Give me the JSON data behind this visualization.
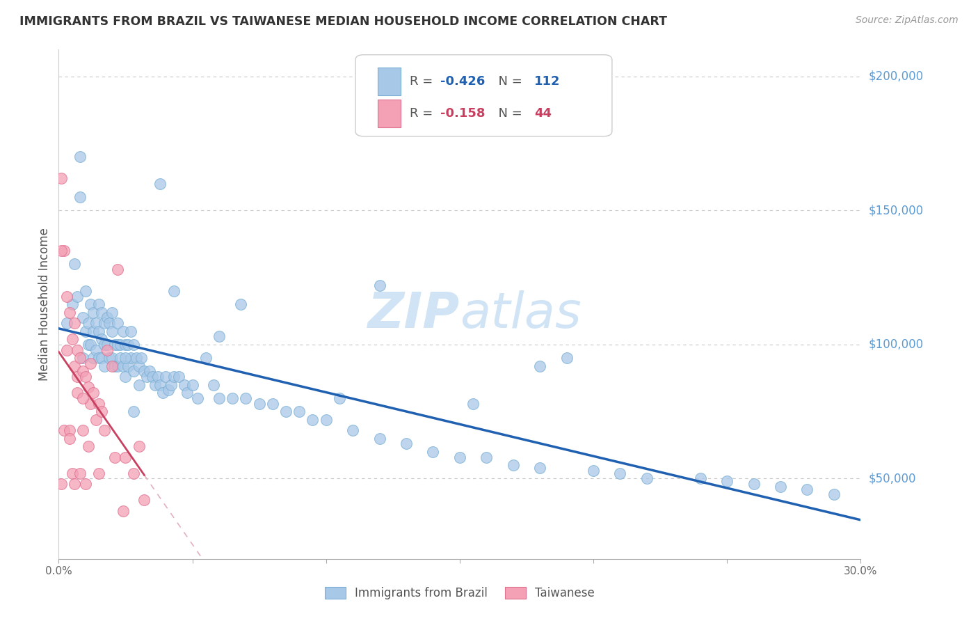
{
  "title": "IMMIGRANTS FROM BRAZIL VS TAIWANESE MEDIAN HOUSEHOLD INCOME CORRELATION CHART",
  "source": "Source: ZipAtlas.com",
  "ylabel": "Median Household Income",
  "x_min": 0.0,
  "x_max": 0.3,
  "y_min": 20000,
  "y_max": 210000,
  "y_ticks": [
    50000,
    100000,
    150000,
    200000
  ],
  "y_tick_labels": [
    "$50,000",
    "$100,000",
    "$150,000",
    "$200,000"
  ],
  "x_ticks": [
    0.0,
    0.05,
    0.1,
    0.15,
    0.2,
    0.25,
    0.3
  ],
  "x_tick_labels": [
    "0.0%",
    "",
    "",
    "",
    "",
    "",
    "30.0%"
  ],
  "brazil_color": "#a8c8e8",
  "brazil_edge": "#7aafd4",
  "taiwan_color": "#f4a0b5",
  "taiwan_edge": "#e07090",
  "brazil_R": -0.426,
  "brazil_N": 112,
  "taiwan_R": -0.158,
  "taiwan_N": 44,
  "brazil_line_color": "#2060b0",
  "taiwan_line_color": "#c84060",
  "taiwan_dash_color": "#e0b0c0",
  "background_color": "#ffffff",
  "grid_color": "#c8c8c8",
  "watermark_color": "#d0e4f5",
  "brazil_scatter_x": [
    0.003,
    0.005,
    0.006,
    0.007,
    0.008,
    0.009,
    0.009,
    0.01,
    0.01,
    0.011,
    0.011,
    0.012,
    0.012,
    0.013,
    0.013,
    0.013,
    0.014,
    0.014,
    0.015,
    0.015,
    0.015,
    0.016,
    0.016,
    0.016,
    0.017,
    0.017,
    0.017,
    0.018,
    0.018,
    0.019,
    0.019,
    0.02,
    0.02,
    0.02,
    0.021,
    0.021,
    0.022,
    0.022,
    0.022,
    0.023,
    0.023,
    0.024,
    0.024,
    0.025,
    0.025,
    0.026,
    0.026,
    0.027,
    0.027,
    0.028,
    0.028,
    0.029,
    0.03,
    0.03,
    0.031,
    0.032,
    0.033,
    0.034,
    0.035,
    0.036,
    0.037,
    0.038,
    0.039,
    0.04,
    0.041,
    0.042,
    0.043,
    0.045,
    0.047,
    0.048,
    0.05,
    0.052,
    0.055,
    0.058,
    0.06,
    0.065,
    0.07,
    0.075,
    0.08,
    0.085,
    0.09,
    0.095,
    0.1,
    0.11,
    0.12,
    0.13,
    0.14,
    0.15,
    0.16,
    0.17,
    0.18,
    0.2,
    0.21,
    0.22,
    0.24,
    0.25,
    0.26,
    0.27,
    0.28,
    0.29,
    0.008,
    0.06,
    0.12,
    0.18,
    0.038,
    0.068,
    0.043,
    0.025,
    0.19,
    0.155,
    0.105,
    0.028
  ],
  "brazil_scatter_y": [
    108000,
    115000,
    130000,
    118000,
    155000,
    110000,
    95000,
    120000,
    105000,
    108000,
    100000,
    115000,
    100000,
    112000,
    105000,
    95000,
    108000,
    98000,
    115000,
    105000,
    95000,
    112000,
    102000,
    95000,
    108000,
    100000,
    92000,
    110000,
    100000,
    108000,
    95000,
    112000,
    105000,
    95000,
    100000,
    92000,
    108000,
    100000,
    92000,
    100000,
    95000,
    105000,
    92000,
    100000,
    88000,
    100000,
    92000,
    105000,
    95000,
    100000,
    90000,
    95000,
    92000,
    85000,
    95000,
    90000,
    88000,
    90000,
    88000,
    85000,
    88000,
    85000,
    82000,
    88000,
    83000,
    85000,
    88000,
    88000,
    85000,
    82000,
    85000,
    80000,
    95000,
    85000,
    80000,
    80000,
    80000,
    78000,
    78000,
    75000,
    75000,
    72000,
    72000,
    68000,
    65000,
    63000,
    60000,
    58000,
    58000,
    55000,
    54000,
    53000,
    52000,
    50000,
    50000,
    49000,
    48000,
    47000,
    46000,
    44000,
    170000,
    103000,
    122000,
    92000,
    160000,
    115000,
    120000,
    95000,
    95000,
    78000,
    80000,
    75000
  ],
  "taiwan_scatter_x": [
    0.001,
    0.001,
    0.002,
    0.002,
    0.003,
    0.003,
    0.004,
    0.004,
    0.005,
    0.005,
    0.006,
    0.006,
    0.006,
    0.007,
    0.007,
    0.007,
    0.008,
    0.008,
    0.009,
    0.009,
    0.01,
    0.01,
    0.011,
    0.011,
    0.012,
    0.012,
    0.013,
    0.014,
    0.015,
    0.016,
    0.017,
    0.018,
    0.02,
    0.021,
    0.022,
    0.024,
    0.025,
    0.028,
    0.03,
    0.032,
    0.001,
    0.004,
    0.009,
    0.015
  ],
  "taiwan_scatter_y": [
    162000,
    48000,
    135000,
    68000,
    118000,
    98000,
    112000,
    68000,
    102000,
    52000,
    108000,
    92000,
    48000,
    98000,
    88000,
    82000,
    95000,
    52000,
    90000,
    68000,
    88000,
    48000,
    84000,
    62000,
    78000,
    93000,
    82000,
    72000,
    78000,
    75000,
    68000,
    98000,
    92000,
    58000,
    128000,
    38000,
    58000,
    52000,
    62000,
    42000,
    135000,
    65000,
    80000,
    52000
  ]
}
